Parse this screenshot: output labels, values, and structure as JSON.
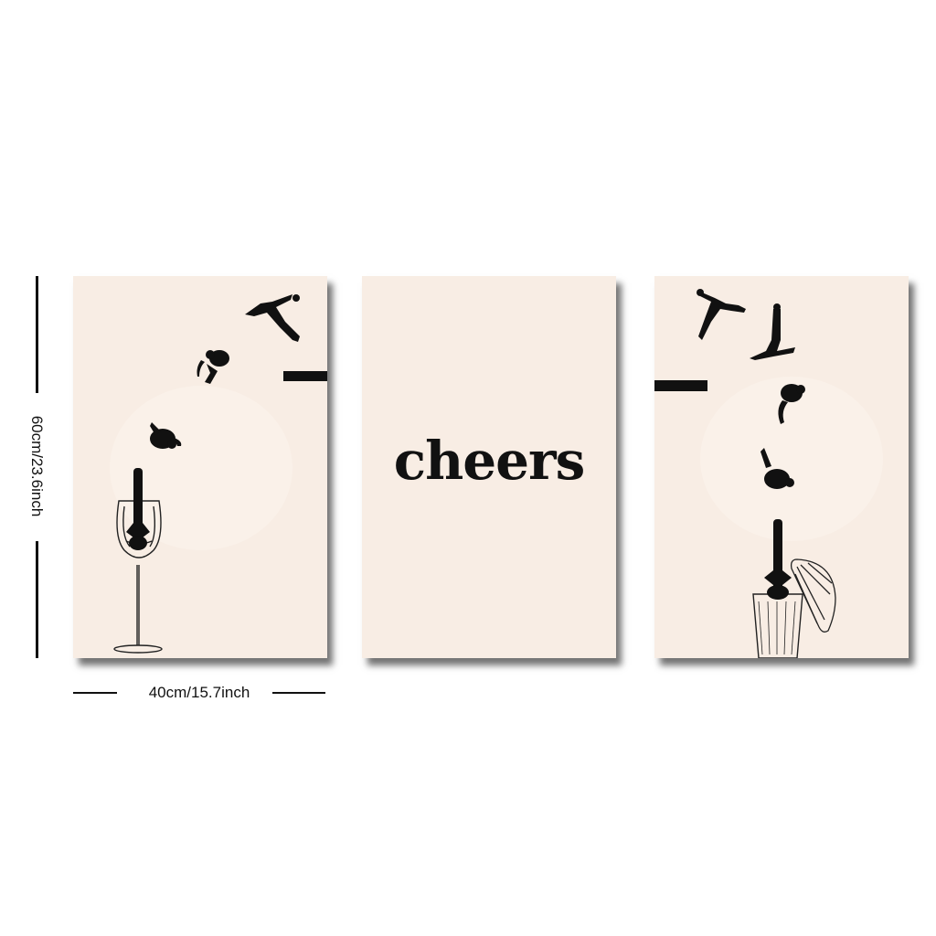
{
  "panels": {
    "center": {
      "text": "cheers"
    }
  },
  "dimensions": {
    "height_label": "60cm/23.6inch",
    "width_label": "40cm/15.7inch"
  },
  "colors": {
    "panel_background": "#f8ede4",
    "ink": "#111111"
  }
}
